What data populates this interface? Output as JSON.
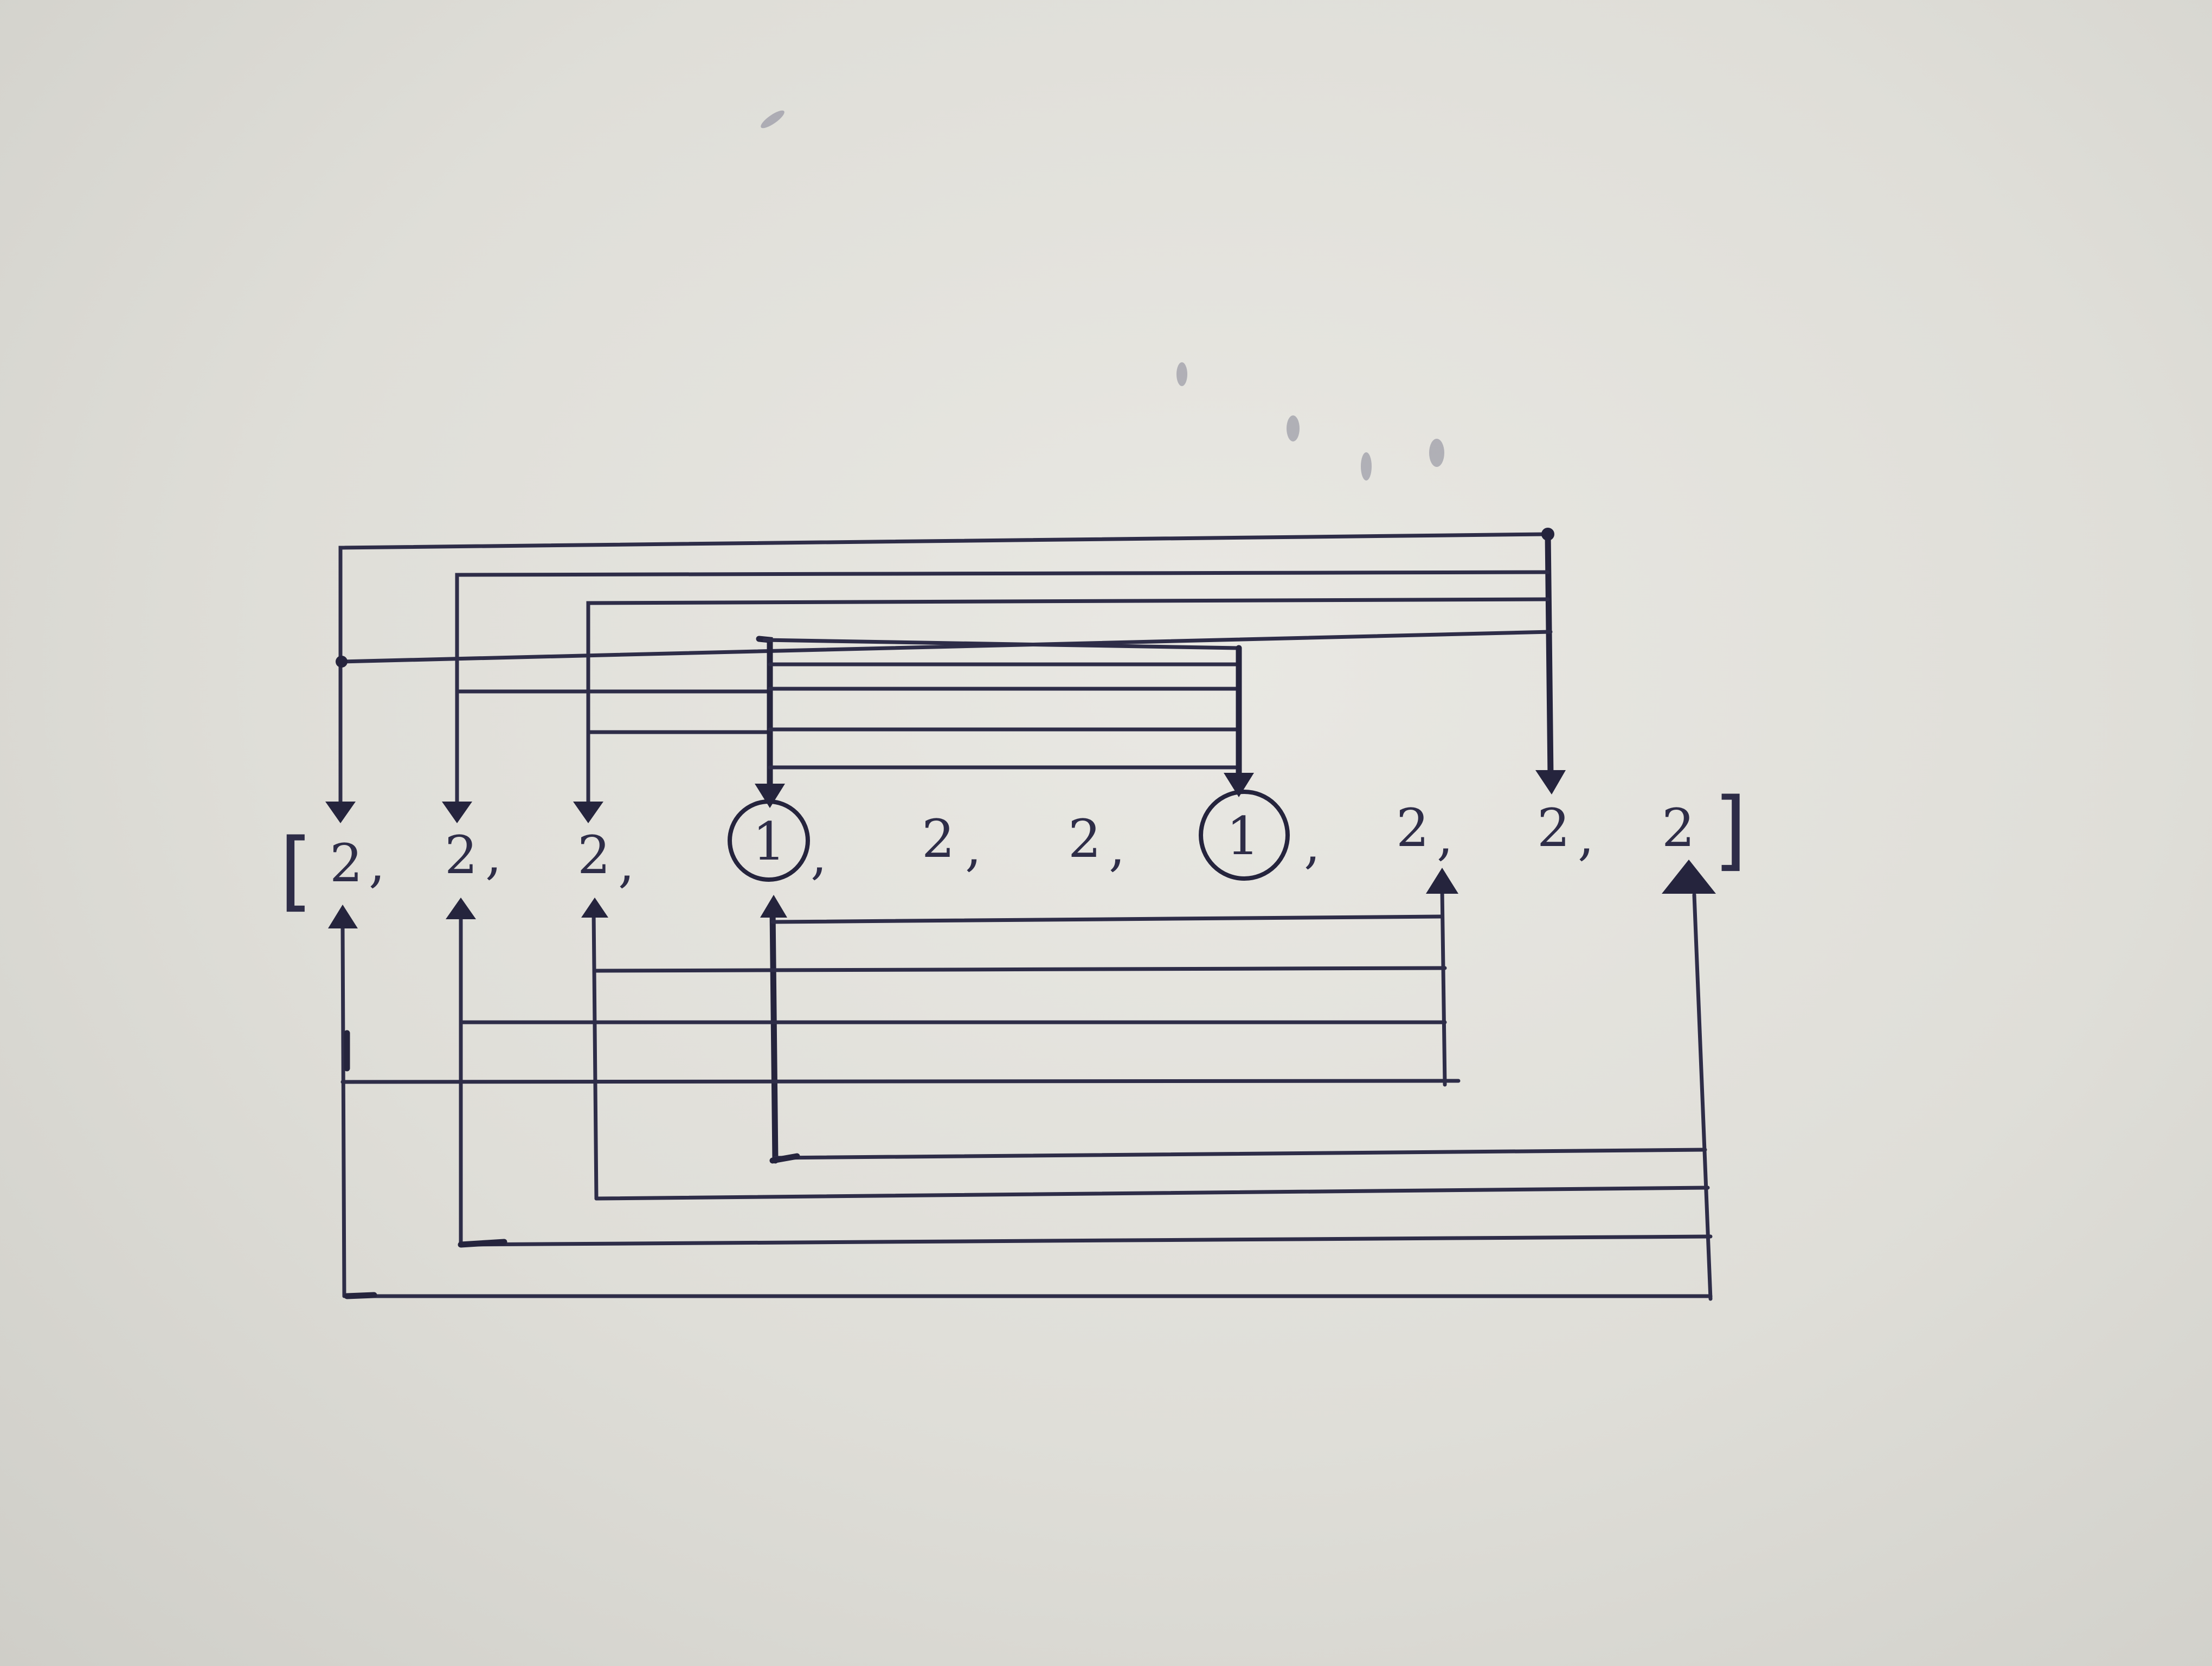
{
  "diagram": {
    "open_bracket": "[",
    "close_bracket": "]",
    "elements": [
      {
        "value": "2",
        "sep": ",",
        "circled": false
      },
      {
        "value": "2",
        "sep": ",",
        "circled": false
      },
      {
        "value": "2",
        "sep": ",",
        "circled": false
      },
      {
        "value": "1",
        "sep": ",",
        "circled": true
      },
      {
        "value": "2",
        "sep": ",",
        "circled": false
      },
      {
        "value": "2",
        "sep": ",",
        "circled": false
      },
      {
        "value": "1",
        "sep": ",",
        "circled": true
      },
      {
        "value": "2",
        "sep": ",",
        "circled": false
      },
      {
        "value": "2",
        "sep": ",",
        "circled": false
      },
      {
        "value": "2",
        "sep": "",
        "circled": false
      }
    ],
    "top_connections": [
      {
        "from": 8,
        "to": 0
      },
      {
        "from": 8,
        "to": 1
      },
      {
        "from": 8,
        "to": 2
      },
      {
        "from": 3,
        "to": 6
      }
    ],
    "bottom_connections": [
      {
        "from": 7,
        "to": 3
      },
      {
        "from": 7,
        "to": 2
      },
      {
        "from": 7,
        "to": 1
      },
      {
        "from": 7,
        "to": 0
      },
      {
        "from": 9,
        "to": 3
      },
      {
        "from": 9,
        "to": 2
      },
      {
        "from": 9,
        "to": 1
      },
      {
        "from": 9,
        "to": 0
      }
    ]
  }
}
